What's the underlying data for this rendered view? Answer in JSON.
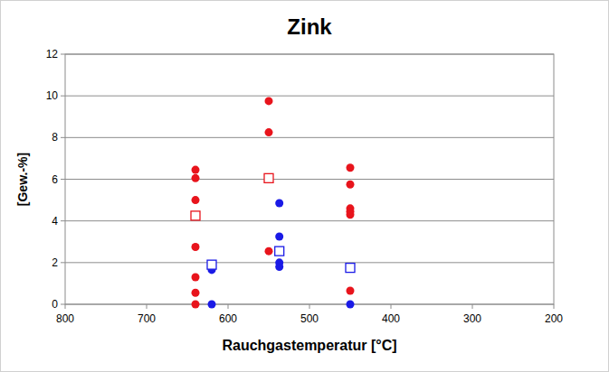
{
  "chart_data": {
    "type": "scatter",
    "title": "Zink",
    "x_label": "Rauchgastemperatur [°C]",
    "y_label": "[Gew.-%]",
    "xlim": [
      800,
      200
    ],
    "xticks": [
      800,
      700,
      600,
      500,
      400,
      300,
      200
    ],
    "ylim": [
      0,
      12
    ],
    "yticks": [
      0,
      2,
      4,
      6,
      8,
      10,
      12
    ],
    "grid": true,
    "series": [
      {
        "color": "#e8141c",
        "marker": "circle",
        "x": [
          640,
          640,
          640,
          640,
          640,
          640,
          640,
          550,
          550,
          550,
          450,
          450,
          450,
          450,
          450,
          450
        ],
        "values": [
          6.45,
          6.05,
          5.0,
          2.75,
          1.3,
          0.55,
          0.0,
          9.75,
          8.25,
          2.55,
          6.55,
          5.75,
          4.6,
          4.45,
          4.3,
          0.65
        ]
      },
      {
        "color": "#e8141c",
        "marker": "open-square",
        "x": [
          640,
          550
        ],
        "values": [
          4.25,
          6.05
        ]
      },
      {
        "color": "#1a1ae6",
        "marker": "circle",
        "x": [
          620,
          620,
          537,
          537,
          537,
          537,
          450
        ],
        "values": [
          1.65,
          0.0,
          4.85,
          3.25,
          2.0,
          1.8,
          0.0
        ]
      },
      {
        "color": "#1a1ae6",
        "marker": "open-square",
        "x": [
          620,
          537,
          450
        ],
        "values": [
          1.9,
          2.55,
          1.75
        ]
      }
    ]
  }
}
